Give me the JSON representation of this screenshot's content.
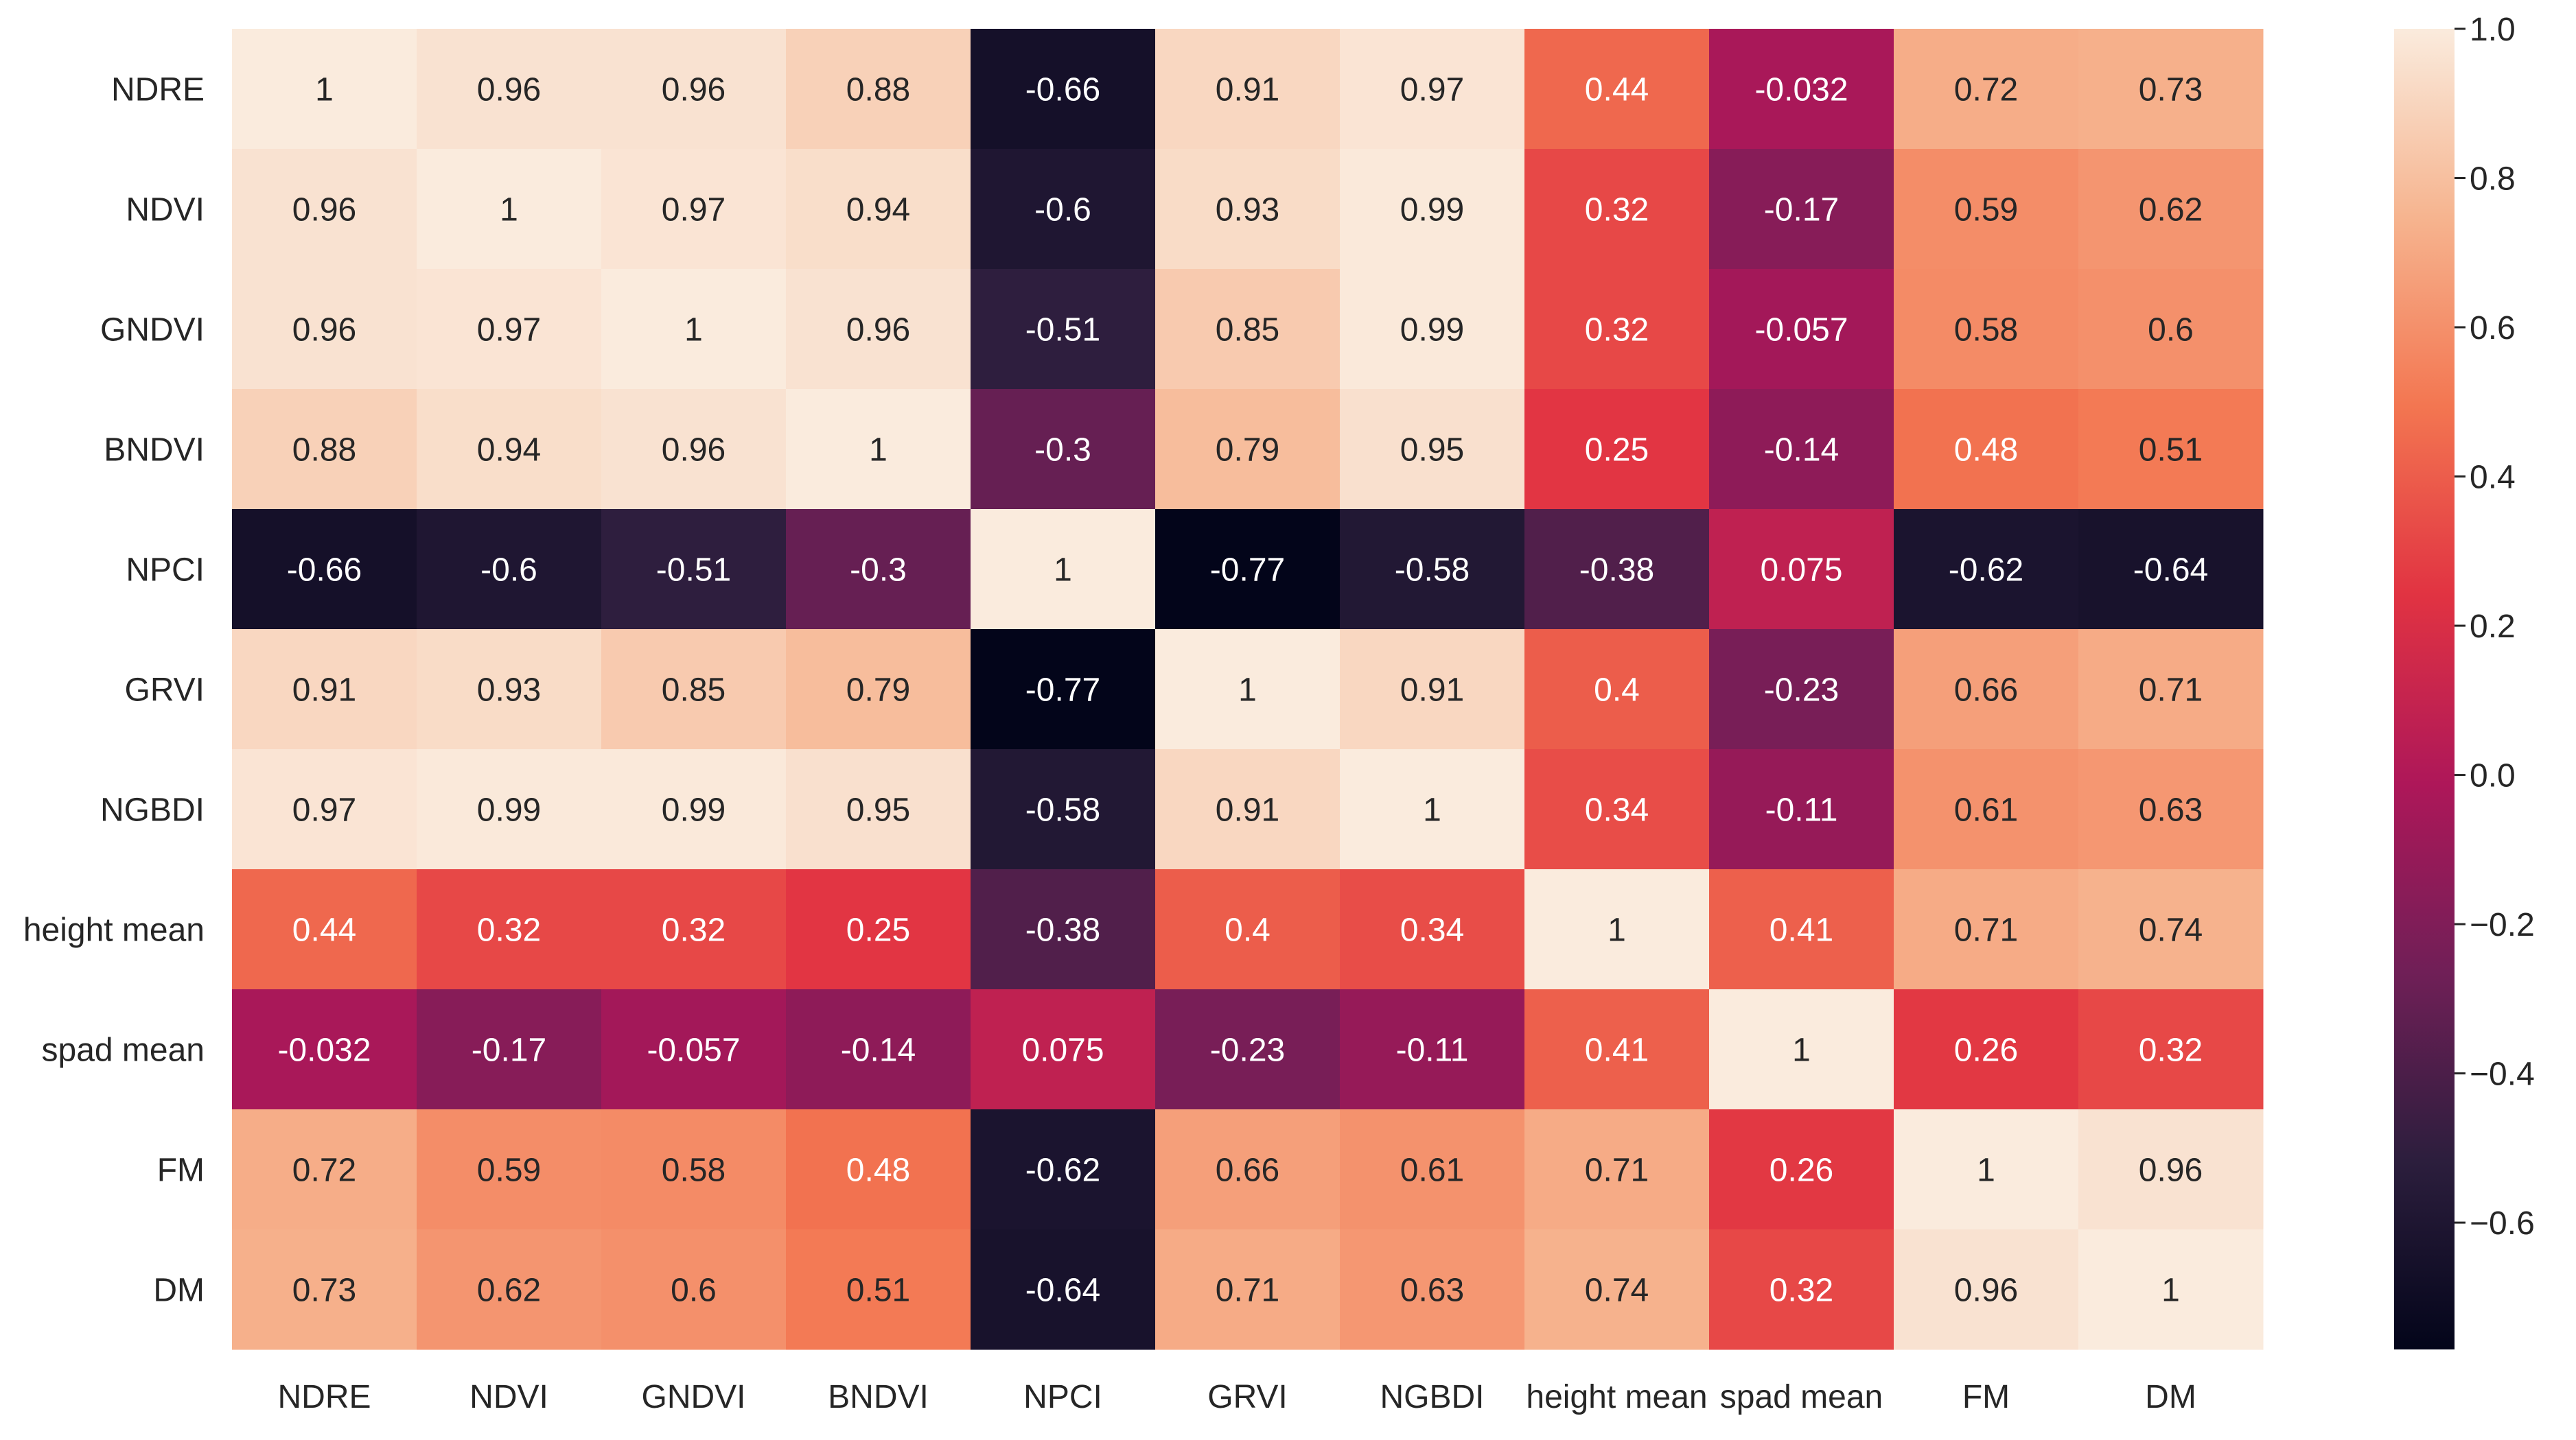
{
  "chart_data": {
    "type": "heatmap",
    "title": "",
    "xlabel": "",
    "ylabel": "",
    "row_labels": [
      "NDRE",
      "NDVI",
      "GNDVI",
      "BNDVI",
      "NPCI",
      "GRVI",
      "NGBDI",
      "height mean",
      "spad mean",
      "FM",
      "DM"
    ],
    "col_labels": [
      "NDRE",
      "NDVI",
      "GNDVI",
      "BNDVI",
      "NPCI",
      "GRVI",
      "NGBDI",
      "height mean",
      "spad mean",
      "FM",
      "DM"
    ],
    "values": [
      [
        1,
        0.96,
        0.96,
        0.88,
        -0.66,
        0.91,
        0.97,
        0.44,
        -0.032,
        0.72,
        0.73
      ],
      [
        0.96,
        1,
        0.97,
        0.94,
        -0.6,
        0.93,
        0.99,
        0.32,
        -0.17,
        0.59,
        0.62
      ],
      [
        0.96,
        0.97,
        1,
        0.96,
        -0.51,
        0.85,
        0.99,
        0.32,
        -0.057,
        0.58,
        0.6
      ],
      [
        0.88,
        0.94,
        0.96,
        1,
        -0.3,
        0.79,
        0.95,
        0.25,
        -0.14,
        0.48,
        0.51
      ],
      [
        -0.66,
        -0.6,
        -0.51,
        -0.3,
        1,
        -0.77,
        -0.58,
        -0.38,
        0.075,
        -0.62,
        -0.64
      ],
      [
        0.91,
        0.93,
        0.85,
        0.79,
        -0.77,
        1,
        0.91,
        0.4,
        -0.23,
        0.66,
        0.71
      ],
      [
        0.97,
        0.99,
        0.99,
        0.95,
        -0.58,
        0.91,
        1,
        0.34,
        -0.11,
        0.61,
        0.63
      ],
      [
        0.44,
        0.32,
        0.32,
        0.25,
        -0.38,
        0.4,
        0.34,
        1,
        0.41,
        0.71,
        0.74
      ],
      [
        -0.032,
        -0.17,
        -0.057,
        -0.14,
        0.075,
        -0.23,
        -0.11,
        0.41,
        1,
        0.26,
        0.32
      ],
      [
        0.72,
        0.59,
        0.58,
        0.48,
        -0.62,
        0.66,
        0.61,
        0.71,
        0.26,
        1,
        0.96
      ],
      [
        0.73,
        0.62,
        0.6,
        0.51,
        -0.64,
        0.71,
        0.63,
        0.74,
        0.32,
        0.96,
        1
      ]
    ],
    "value_labels": [
      [
        "1",
        "0.96",
        "0.96",
        "0.88",
        "-0.66",
        "0.91",
        "0.97",
        "0.44",
        "-0.032",
        "0.72",
        "0.73"
      ],
      [
        "0.96",
        "1",
        "0.97",
        "0.94",
        "-0.6",
        "0.93",
        "0.99",
        "0.32",
        "-0.17",
        "0.59",
        "0.62"
      ],
      [
        "0.96",
        "0.97",
        "1",
        "0.96",
        "-0.51",
        "0.85",
        "0.99",
        "0.32",
        "-0.057",
        "0.58",
        "0.6"
      ],
      [
        "0.88",
        "0.94",
        "0.96",
        "1",
        "-0.3",
        "0.79",
        "0.95",
        "0.25",
        "-0.14",
        "0.48",
        "0.51"
      ],
      [
        "-0.66",
        "-0.6",
        "-0.51",
        "-0.3",
        "1",
        "-0.77",
        "-0.58",
        "-0.38",
        "0.075",
        "-0.62",
        "-0.64"
      ],
      [
        "0.91",
        "0.93",
        "0.85",
        "0.79",
        "-0.77",
        "1",
        "0.91",
        "0.4",
        "-0.23",
        "0.66",
        "0.71"
      ],
      [
        "0.97",
        "0.99",
        "0.99",
        "0.95",
        "-0.58",
        "0.91",
        "1",
        "0.34",
        "-0.11",
        "0.61",
        "0.63"
      ],
      [
        "0.44",
        "0.32",
        "0.32",
        "0.25",
        "-0.38",
        "0.4",
        "0.34",
        "1",
        "0.41",
        "0.71",
        "0.74"
      ],
      [
        "-0.032",
        "-0.17",
        "-0.057",
        "-0.14",
        "0.075",
        "-0.23",
        "-0.11",
        "0.41",
        "1",
        "0.26",
        "0.32"
      ],
      [
        "0.72",
        "0.59",
        "0.58",
        "0.48",
        "-0.62",
        "0.66",
        "0.61",
        "0.71",
        "0.26",
        "1",
        "0.96"
      ],
      [
        "0.73",
        "0.62",
        "0.6",
        "0.51",
        "-0.64",
        "0.71",
        "0.63",
        "0.74",
        "0.32",
        "0.96",
        "1"
      ]
    ],
    "colorbar": {
      "vmin": -0.77,
      "vmax": 1.0,
      "ticks": [
        1.0,
        0.8,
        0.6,
        0.4,
        0.2,
        0.0,
        -0.2,
        -0.4,
        -0.6
      ],
      "tick_labels": [
        "1.0",
        "0.8",
        "0.6",
        "0.4",
        "0.2",
        "0.0",
        "−0.2",
        "−0.4",
        "−0.6"
      ],
      "placement": "right"
    },
    "colormap": "rocket",
    "colormap_stops": [
      "#03051a",
      "#2c1e3d",
      "#701f57",
      "#ae1759",
      "#e13342",
      "#f37651",
      "#f6b48f",
      "#faebdd"
    ],
    "annotation_colors": {
      "light_text": "#ffffff",
      "dark_text": "#262626"
    }
  }
}
